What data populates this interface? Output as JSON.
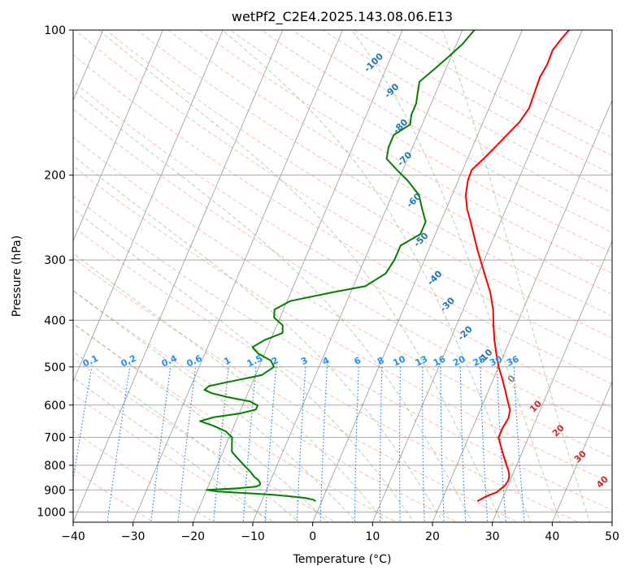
{
  "colors": {
    "temperature": "#ff0000",
    "dewpoint": "#008000",
    "isotherm": "#999999",
    "isobar": "#aaaaaa",
    "dry_adiabat": "#ff8866",
    "moist_adiabat": "#66aa66",
    "mixing_ratio": "#1e78e0",
    "dry_adiabat_label": "#1f77b4",
    "moist_adiabat_label": "#d62728",
    "mixing_ratio_label": "#1e90ff"
  },
  "chart_data": {
    "type": "line",
    "subtype": "skew-T log-p diagram",
    "title": "wetPf2_C2E4.2025.143.08.06.E13",
    "xlabel": "Temperature (°C)",
    "ylabel": "Pressure (hPa)",
    "xlim": [
      -40,
      50
    ],
    "ylim": [
      1050,
      100
    ],
    "y_scale": "log",
    "grid": true,
    "x_ticks": [
      -40,
      -30,
      -20,
      -10,
      0,
      10,
      20,
      30,
      40,
      50
    ],
    "x_tick_labels": [
      "−40",
      "−30",
      "−20",
      "−10",
      "0",
      "10",
      "20",
      "30",
      "40",
      "50"
    ],
    "y_ticks": [
      100,
      200,
      300,
      400,
      500,
      600,
      700,
      800,
      900,
      1000
    ],
    "y_tick_labels": [
      "100",
      "200",
      "300",
      "400",
      "500",
      "600",
      "700",
      "800",
      "900",
      "1000"
    ],
    "series": [
      {
        "role": "temperature",
        "pressure": [
          950,
          930,
          910,
          880,
          860,
          840,
          820,
          790,
          760,
          730,
          700,
          670,
          640,
          615,
          590,
          560,
          530,
          500,
          470,
          440,
          410,
          380,
          350,
          320,
          290,
          270,
          250,
          235,
          220,
          205,
          195,
          185,
          175,
          165,
          155,
          145,
          135,
          125,
          118,
          110,
          104,
          100
        ],
        "values": [
          26,
          27,
          28.6,
          29.5,
          29.7,
          29.5,
          29,
          28,
          27,
          26,
          25,
          25,
          25.3,
          25,
          24,
          22.8,
          21.5,
          20,
          18.7,
          17.4,
          16.2,
          15,
          13.3,
          11,
          8.5,
          6.8,
          5,
          3.5,
          2.3,
          1.6,
          1.5,
          2.7,
          3.8,
          4.9,
          6.1,
          6.7,
          6.5,
          6.3,
          6.6,
          6.5,
          7.2,
          7.8
        ]
      },
      {
        "role": "dewpoint",
        "pressure": [
          950,
          943,
          935,
          928,
          921,
          914,
          907,
          900,
          893,
          886,
          879,
          872,
          860,
          845,
          825,
          800,
          775,
          750,
          725,
          700,
          680,
          662,
          648,
          636,
          625,
          613,
          601,
          590,
          578,
          567,
          558,
          548,
          537,
          520,
          500,
          485,
          470,
          455,
          440,
          425,
          410,
          395,
          380,
          365,
          350,
          340,
          320,
          300,
          280,
          265,
          250,
          235,
          220,
          205,
          195,
          185,
          175,
          165,
          157,
          150,
          142,
          135,
          128,
          121,
          114,
          107,
          100
        ],
        "values": [
          -1,
          -1.5,
          -3,
          -5.5,
          -8.5,
          -13,
          -18,
          -20,
          -15,
          -12,
          -11.5,
          -11.5,
          -12,
          -13,
          -14,
          -15.5,
          -17,
          -18.5,
          -19,
          -19.5,
          -21,
          -23.5,
          -26,
          -24,
          -20,
          -17.5,
          -17.5,
          -19,
          -23,
          -26,
          -27.5,
          -27,
          -24,
          -19,
          -17.5,
          -18.5,
          -21,
          -22.5,
          -21,
          -18.5,
          -19,
          -21,
          -21.5,
          -19.5,
          -13,
          -8,
          -5.5,
          -5,
          -5,
          -2.5,
          -2.5,
          -4,
          -5.5,
          -8.5,
          -11,
          -13.5,
          -14,
          -14,
          -12,
          -12.5,
          -12.5,
          -13,
          -13.5,
          -12,
          -10.5,
          -9,
          -8
        ]
      }
    ],
    "dry_adiabats": {
      "values": [
        -30,
        -20,
        -10,
        0,
        10,
        20,
        30,
        40,
        50,
        60,
        70,
        80,
        90,
        100,
        110,
        120,
        130,
        140,
        150,
        160,
        170,
        180,
        190,
        200,
        210,
        220
      ],
      "labels": [
        {
          "text": "-100",
          "x": -22,
          "p": 118
        },
        {
          "text": "-90",
          "x": -17,
          "p": 135
        },
        {
          "text": "-80",
          "x": -13,
          "p": 160
        },
        {
          "text": "-70",
          "x": -10,
          "p": 187
        },
        {
          "text": "-60",
          "x": -5.5,
          "p": 228
        },
        {
          "text": "-50",
          "x": -1.5,
          "p": 275
        },
        {
          "text": "-40",
          "x": 3.5,
          "p": 330
        },
        {
          "text": "-30",
          "x": 7.5,
          "p": 375
        },
        {
          "text": "-20",
          "x": 12.5,
          "p": 430
        },
        {
          "text": "-10",
          "x": 17.5,
          "p": 480
        }
      ]
    },
    "moist_adiabats": {
      "values": [
        -10,
        -5,
        0,
        5,
        10,
        15,
        20,
        25,
        30,
        35,
        40,
        45
      ],
      "labels": [
        {
          "text": "0",
          "x": 23.5,
          "p": 535
        },
        {
          "text": "10",
          "x": 29.5,
          "p": 610
        },
        {
          "text": "20",
          "x": 35,
          "p": 685
        },
        {
          "text": "30",
          "x": 40.5,
          "p": 775
        },
        {
          "text": "40",
          "x": 46,
          "p": 875
        }
      ]
    },
    "mixing_ratios": {
      "values": [
        0.1,
        0.2,
        0.4,
        0.6,
        1,
        1.5,
        2,
        3,
        4,
        6,
        8,
        10,
        13,
        16,
        20,
        25,
        30,
        36
      ],
      "labels": [
        "0.1",
        "0.2",
        "0.4",
        "0.6",
        "1",
        "1.5",
        "2",
        "3",
        "4",
        "6",
        "8",
        "10",
        "13",
        "16",
        "20",
        "25",
        "30",
        "36"
      ]
    }
  }
}
